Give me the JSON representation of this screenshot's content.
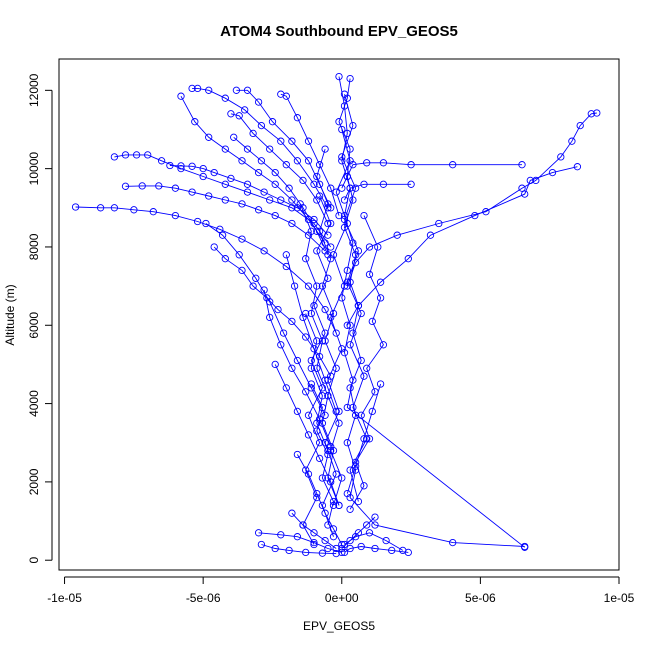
{
  "chart_data": {
    "type": "scatter",
    "title": "ATOM4 Southbound EPV_GEOS5",
    "xlabel": "EPV_GEOS5",
    "ylabel": "Altitude (m)",
    "xlim": [
      -1.02e-05,
      1e-05
    ],
    "ylim": [
      -250,
      12800
    ],
    "x_ticks": [
      {
        "value": -1e-05,
        "label": "-1e-05"
      },
      {
        "value": -5e-06,
        "label": "-5e-06"
      },
      {
        "value": 0,
        "label": "0e+00"
      },
      {
        "value": 5e-06,
        "label": "5e-06"
      },
      {
        "value": 1e-05,
        "label": "1e-05"
      }
    ],
    "y_ticks": [
      {
        "value": 0,
        "label": "0"
      },
      {
        "value": 2000,
        "label": "2000"
      },
      {
        "value": 4000,
        "label": "4000"
      },
      {
        "value": 6000,
        "label": "6000"
      },
      {
        "value": 8000,
        "label": "8000"
      },
      {
        "value": 10000,
        "label": "10000"
      },
      {
        "value": 12000,
        "label": "12000"
      }
    ],
    "series_color": "#0000FF",
    "marker": "open-circle",
    "line_connected": true,
    "grid": false,
    "legend": "none",
    "series": [
      {
        "x": [
          3e-07,
          2e-07,
          -1e-07,
          3e-07,
          2e-07,
          4e-07,
          1e-07,
          5e-07,
          3e-07,
          6e-07,
          4e-07,
          7e-07,
          3e-07,
          5e-07,
          2e-07,
          5e-07,
          3e-07,
          1.2e-06,
          4e-06,
          6.6e-06
        ],
        "y": [
          12300,
          11800,
          11200,
          10500,
          9800,
          9200,
          8500,
          7800,
          7100,
          6500,
          5800,
          5100,
          4400,
          3700,
          3000,
          2300,
          1600,
          900,
          450,
          350
        ]
      },
      {
        "x": [
          -1e-07,
          1e-07,
          2e-07,
          0.0,
          3e-07,
          1e-07,
          4e-07,
          2e-07,
          0.0,
          3e-07,
          1e-07,
          4e-07,
          2e-07,
          6.6e-06
        ],
        "y": [
          12350,
          11600,
          10900,
          10200,
          9500,
          8800,
          8100,
          7400,
          6700,
          6000,
          5300,
          4600,
          3900,
          330
        ]
      },
      {
        "x": [
          9.2e-06,
          9e-06,
          8.6e-06,
          8.3e-06,
          7.9e-06,
          7e-06,
          6.5e-06,
          5.2e-06,
          3.5e-06,
          2e-06,
          1e-06,
          5e-07,
          2e-07
        ],
        "y": [
          11420,
          11400,
          11100,
          10700,
          10300,
          9700,
          9500,
          8900,
          8600,
          8300,
          8000,
          7600,
          7000
        ]
      },
      {
        "x": [
          8.5e-06,
          7.6e-06,
          6.8e-06,
          6.6e-06,
          4.8e-06,
          3.2e-06,
          2.4e-06,
          1.4e-06,
          6e-07,
          2e-07
        ],
        "y": [
          10050,
          9900,
          9700,
          9350,
          8800,
          8300,
          7700,
          7100,
          6500,
          6000
        ]
      },
      {
        "x": [
          6.5e-06,
          4e-06,
          2.5e-06,
          1.5e-06,
          9e-07,
          4e-07,
          2e-07,
          0.0
        ],
        "y": [
          10100,
          10100,
          10100,
          10150,
          10150,
          10100,
          9800,
          9500
        ]
      },
      {
        "x": [
          2.5e-06,
          1.5e-06,
          8e-07,
          3e-07,
          1e-07
        ],
        "y": [
          9600,
          9600,
          9600,
          9500,
          9200
        ]
      },
      {
        "x": [
          -9.6e-06,
          -8.7e-06,
          -8.2e-06,
          -7.5e-06,
          -6.8e-06,
          -6e-06,
          -5.2e-06,
          -4.4e-06,
          -3.6e-06,
          -2.8e-06,
          -2e-06,
          -1.2e-06,
          -6e-07,
          -2e-07
        ],
        "y": [
          9020,
          9000,
          9000,
          8950,
          8900,
          8800,
          8650,
          8450,
          8200,
          7900,
          7500,
          7000,
          6400,
          5800
        ]
      },
      {
        "x": [
          -8.2e-06,
          -7.8e-06,
          -7.4e-06,
          -7e-06,
          -6.5e-06,
          -5.8e-06,
          -5e-06,
          -4.2e-06,
          -3.4e-06,
          -2.6e-06,
          -1.8e-06,
          -1e-06,
          -4e-07
        ],
        "y": [
          10300,
          10350,
          10350,
          10350,
          10200,
          10000,
          9800,
          9600,
          9400,
          9200,
          9000,
          8600,
          8000
        ]
      },
      {
        "x": [
          -7.8e-06,
          -7.2e-06,
          -6.6e-06,
          -6e-06,
          -5.4e-06,
          -4.8e-06,
          -4.2e-06,
          -3.6e-06,
          -3e-06,
          -2.4e-06,
          -1.8e-06,
          -1.2e-06,
          -6e-07
        ],
        "y": [
          9550,
          9560,
          9560,
          9500,
          9400,
          9300,
          9200,
          9100,
          8950,
          8800,
          8600,
          8300,
          7900
        ]
      },
      {
        "x": [
          -6.2e-06,
          -5.8e-06,
          -5.4e-06,
          -5e-06,
          -4.6e-06,
          -4e-06,
          -3.4e-06,
          -2.8e-06,
          -2.2e-06,
          -1.6e-06,
          -1e-06,
          -5e-07
        ],
        "y": [
          10080,
          10070,
          10060,
          10000,
          9900,
          9750,
          9600,
          9400,
          9200,
          9000,
          8700,
          8300
        ]
      },
      {
        "x": [
          -5.8e-06,
          -5.3e-06,
          -4.8e-06,
          -4.2e-06,
          -3.6e-06,
          -3e-06,
          -2.4e-06,
          -1.8e-06,
          -1.2e-06,
          -6e-07
        ],
        "y": [
          11850,
          11200,
          10800,
          10500,
          10200,
          9900,
          9600,
          9200,
          8700,
          8100
        ]
      },
      {
        "x": [
          -5.4e-06,
          -5.2e-06,
          -4.8e-06,
          -4.2e-06,
          -3.5e-06,
          -2.9e-06,
          -2.2e-06,
          -1.6e-06,
          -1e-06,
          -5e-07
        ],
        "y": [
          12050,
          12050,
          12000,
          11800,
          11500,
          11100,
          10700,
          10200,
          9600,
          9000
        ]
      },
      {
        "x": [
          -3.8e-06,
          -3.4e-06,
          -3e-06,
          -2.5e-06,
          -1.8e-06,
          -1.2e-06,
          -8e-07,
          -4e-07
        ],
        "y": [
          12000,
          12000,
          11700,
          11200,
          10700,
          10200,
          9600,
          9000
        ]
      },
      {
        "x": [
          -2.2e-06,
          -2e-06,
          -1.6e-06,
          -1.2e-06,
          -8e-07,
          -4e-07,
          -1e-07
        ],
        "y": [
          11900,
          11850,
          11300,
          10700,
          10100,
          9500,
          8800
        ]
      },
      {
        "x": [
          -4e-06,
          -3.7e-06,
          -3.2e-06,
          -2.6e-06,
          -2e-06,
          -1.4e-06,
          -9e-07,
          -5e-07
        ],
        "y": [
          11400,
          11350,
          10900,
          10500,
          10100,
          9700,
          9200,
          8600
        ]
      },
      {
        "x": [
          -3.9e-06,
          -3.4e-06,
          -2.9e-06,
          -2.4e-06,
          -1.9e-06,
          -1.4e-06,
          -9e-07,
          -5e-07
        ],
        "y": [
          10800,
          10500,
          10200,
          9900,
          9500,
          9000,
          8400,
          7800
        ]
      },
      {
        "x": [
          -4.6e-06,
          -4.2e-06,
          -3.6e-06,
          -3.2e-06,
          -2.7e-06,
          -2.3e-06,
          -1.8e-06,
          -1.3e-06,
          -8e-07,
          -4e-07
        ],
        "y": [
          8000,
          7700,
          7400,
          7000,
          6700,
          6400,
          6100,
          5700,
          5200,
          4700
        ]
      },
      {
        "x": [
          -4.9e-06,
          -4.3e-06,
          -3.7e-06,
          -3.1e-06,
          -2.6e-06,
          -2.1e-06,
          -1.6e-06,
          -1.1e-06,
          -6e-07
        ],
        "y": [
          8600,
          8300,
          7800,
          7200,
          6600,
          5800,
          5100,
          4400,
          3700
        ]
      },
      {
        "x": [
          -2.8e-06,
          -2.6e-06,
          -2.2e-06,
          -1.8e-06,
          -1.3e-06,
          -8e-07,
          -4e-07
        ],
        "y": [
          6900,
          6200,
          5500,
          4900,
          4300,
          3600,
          2900
        ]
      },
      {
        "x": [
          -2e-06,
          -1.7e-06,
          -1.4e-06,
          -1e-06,
          -6e-07,
          -2e-07
        ],
        "y": [
          7800,
          7000,
          6200,
          5400,
          4600,
          3800
        ]
      },
      {
        "x": [
          -2.4e-06,
          -2e-06,
          -1.6e-06,
          -1.2e-06,
          -8e-07,
          -4e-07,
          -1e-07
        ],
        "y": [
          5000,
          4400,
          3800,
          3200,
          2600,
          2000,
          1400
        ]
      },
      {
        "x": [
          -1.5e-06,
          -1.1e-06,
          -1.3e-06,
          -9e-07,
          -1.1e-06,
          -7e-07,
          -9e-07,
          -5e-07,
          -7e-07,
          -3e-07,
          -5e-07,
          -1e-07
        ],
        "y": [
          9100,
          8400,
          7700,
          7000,
          6300,
          5600,
          4900,
          4200,
          3500,
          2800,
          2100,
          1400
        ]
      },
      {
        "x": [
          -6e-07,
          -9e-07,
          -5e-07,
          -8e-07,
          -4e-07,
          -7e-07,
          -3e-07,
          -6e-07,
          -2e-07,
          -5e-07,
          -1e-07,
          -4e-07,
          0.0,
          -3e-07
        ],
        "y": [
          10500,
          9800,
          9100,
          8400,
          7700,
          7000,
          6300,
          5600,
          4900,
          4200,
          3500,
          2800,
          2100,
          1400
        ]
      },
      {
        "x": [
          1e-07,
          4e-07,
          0.0,
          5e-07,
          1e-07,
          6e-07,
          2e-07,
          7e-07,
          3e-07,
          8e-07,
          4e-07,
          9e-07,
          3e-07,
          6e-07
        ],
        "y": [
          11900,
          11100,
          10300,
          9500,
          8700,
          7900,
          7100,
          6300,
          5500,
          4700,
          3900,
          3100,
          2300,
          1500
        ]
      },
      {
        "x": [
          8e-07,
          1.3e-06,
          1e-06,
          1.4e-06,
          1.1e-06,
          1.5e-06,
          9e-07,
          1.2e-06,
          7e-07,
          1e-06,
          5e-07,
          8e-07,
          3e-07
        ],
        "y": [
          8800,
          8000,
          7300,
          6700,
          6100,
          5500,
          4900,
          4300,
          3700,
          3100,
          2500,
          1900,
          1300
        ]
      },
      {
        "x": [
          -8e-07,
          -4e-07,
          -9e-07,
          -5e-07,
          -1e-06,
          -6e-07,
          -1.1e-06,
          -7e-07,
          -1.2e-06,
          -8e-07,
          -1.3e-06,
          -9e-07,
          -1.4e-06,
          -1e-06
        ],
        "y": [
          9300,
          8600,
          7900,
          7200,
          6500,
          5800,
          5100,
          4400,
          3700,
          3000,
          2300,
          1600,
          900,
          400
        ]
      },
      {
        "x": [
          0.0,
          3e-07,
          -2e-07,
          2e-07,
          -3e-07,
          1e-07,
          -4e-07,
          0.0,
          -5e-07,
          -1e-07,
          -6e-07,
          -2e-07,
          -7e-07,
          -3e-07
        ],
        "y": [
          11000,
          10200,
          9400,
          8600,
          7800,
          7000,
          6200,
          5400,
          4600,
          3800,
          3000,
          2200,
          1400,
          600
        ]
      },
      {
        "x": [
          -3e-06,
          -2.2e-06,
          -1.6e-06,
          -1e-06,
          -5e-07,
          0.0
        ],
        "y": [
          700,
          650,
          600,
          450,
          300,
          200
        ]
      },
      {
        "x": [
          -2.9e-06,
          -2.4e-06,
          -1.9e-06,
          -1.3e-06,
          -7e-07,
          -2e-07
        ],
        "y": [
          400,
          300,
          250,
          200,
          180,
          170
        ]
      },
      {
        "x": [
          -1.8e-06,
          -1.4e-06,
          -1e-06,
          -6e-07,
          -2e-07
        ],
        "y": [
          1200,
          900,
          700,
          500,
          300
        ]
      },
      {
        "x": [
          2.4e-06,
          1.8e-06,
          1.2e-06,
          7e-07,
          3e-07,
          1e-07
        ],
        "y": [
          200,
          250,
          300,
          350,
          300,
          200
        ]
      },
      {
        "x": [
          2.2e-06,
          1.6e-06,
          1e-06,
          5e-07,
          1e-07
        ],
        "y": [
          250,
          500,
          700,
          600,
          400
        ]
      },
      {
        "x": [
          1.2e-06,
          9e-07,
          6e-07,
          3e-07,
          0.0
        ],
        "y": [
          1100,
          900,
          700,
          500,
          300
        ]
      },
      {
        "x": [
          -1.6e-06,
          -1.2e-06,
          -9e-07,
          -6e-07,
          -3e-07,
          0.0
        ],
        "y": [
          2700,
          2200,
          1700,
          1200,
          800,
          400
        ]
      },
      {
        "x": [
          1.4e-06,
          1.1e-06,
          8e-07,
          5e-07,
          2e-07
        ],
        "y": [
          4500,
          3800,
          3100,
          2400,
          1700
        ]
      },
      {
        "x": [
          -1.1e-06,
          -7e-07,
          -9e-07,
          -5e-07,
          -7e-07,
          -3e-07,
          -5e-07
        ],
        "y": [
          4500,
          3900,
          3300,
          2700,
          2100,
          1500,
          900
        ]
      },
      {
        "x": [
          -1.3e-06,
          -9e-07,
          -1.1e-06,
          -7e-07,
          -9e-07,
          -5e-07
        ],
        "y": [
          6300,
          5600,
          4900,
          4200,
          3500,
          2800
        ]
      }
    ]
  }
}
